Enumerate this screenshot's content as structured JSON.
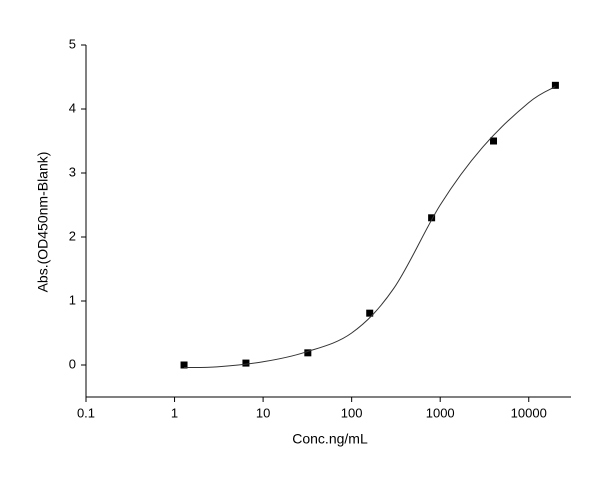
{
  "chart_data": {
    "type": "scatter",
    "x_label": "Conc.ng/mL",
    "y_label": "Abs.(OD450nm-Blank)",
    "x_scale": "log",
    "xlim": [
      0.1,
      30000
    ],
    "ylim": [
      -0.5,
      5
    ],
    "xticks": [
      0.1,
      1,
      10,
      100,
      1000,
      10000
    ],
    "yticks": [
      0,
      1,
      2,
      3,
      4,
      5
    ],
    "series": [
      {
        "kind": "points",
        "color": "#000000",
        "x": [
          1.28,
          6.4,
          32,
          160,
          800,
          4000,
          20000
        ],
        "values": [
          0.0,
          0.03,
          0.19,
          0.81,
          2.3,
          3.5,
          4.37
        ]
      },
      {
        "kind": "fit",
        "color": "#333333",
        "x": [
          1.28,
          3,
          10,
          30,
          100,
          300,
          1000,
          3000,
          10000,
          20000
        ],
        "values": [
          -0.04,
          -0.03,
          0.05,
          0.2,
          0.5,
          1.2,
          2.5,
          3.4,
          4.1,
          4.35
        ]
      }
    ]
  }
}
